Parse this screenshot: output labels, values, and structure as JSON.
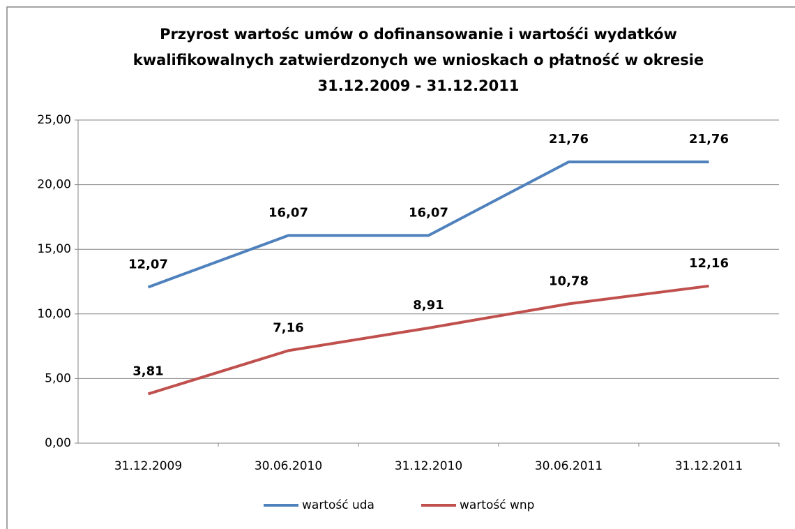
{
  "chart_data": {
    "type": "line",
    "title": [
      "Przyrost wartośc umów o dofinansowanie i wartośći wydatków",
      "kwalifikowalnych zatwierdzonych we wnioskach o płatność w okresie",
      "31.12.2009 - 31.12.2011"
    ],
    "categories": [
      "31.12.2009",
      "30.06.2010",
      "31.12.2010",
      "30.06.2011",
      "31.12.2011"
    ],
    "series": [
      {
        "name": "wartość uda",
        "color": "#4f81bd",
        "values": [
          12.07,
          16.07,
          16.07,
          21.76,
          21.76
        ],
        "value_labels": [
          "12,07",
          "16,07",
          "16,07",
          "21,76",
          "21,76"
        ]
      },
      {
        "name": "wartość wnp",
        "color": "#c0504d",
        "values": [
          3.81,
          7.16,
          8.91,
          10.78,
          12.16
        ],
        "value_labels": [
          "3,81",
          "7,16",
          "8,91",
          "10,78",
          "12,16"
        ]
      }
    ],
    "ylim": [
      0,
      25
    ],
    "yticks": [
      {
        "value": 0,
        "label": "0,00"
      },
      {
        "value": 5,
        "label": "5,00"
      },
      {
        "value": 10,
        "label": "10,00"
      },
      {
        "value": 15,
        "label": "15,00"
      },
      {
        "value": 20,
        "label": "20,00"
      },
      {
        "value": 25,
        "label": "25,00"
      }
    ],
    "grid": true,
    "legend": "bottom"
  }
}
